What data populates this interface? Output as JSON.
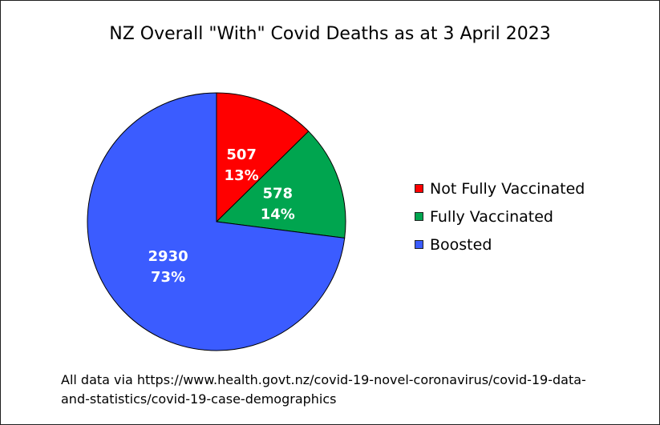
{
  "chart_data": {
    "type": "pie",
    "title": "NZ Overall \"With\" Covid Deaths as at 3 April 2023",
    "categories": [
      "Not Fully Vaccinated",
      "Fully Vaccinated",
      "Boosted"
    ],
    "values": [
      507,
      578,
      2930
    ],
    "percent_labels": [
      "13%",
      "14%",
      "73%"
    ],
    "value_labels": [
      "507",
      "578",
      "2930"
    ],
    "colors": [
      "#ff0000",
      "#00a54f",
      "#3b5cff"
    ],
    "legend_position": "right"
  },
  "source_note": {
    "line1": "All data via https://www.health.govt.nz/covid-19-novel-coronavirus/covid-19-data-",
    "line2": "and-statistics/covid-19-case-demographics"
  }
}
